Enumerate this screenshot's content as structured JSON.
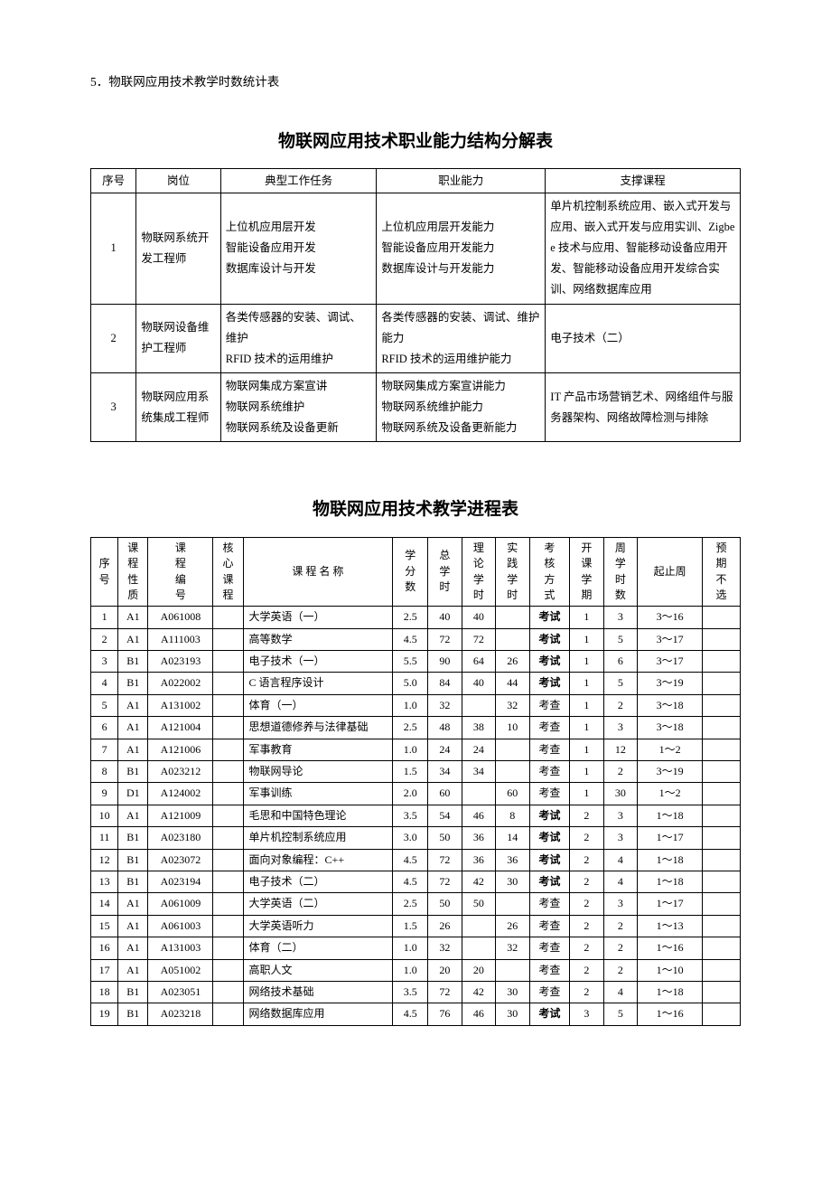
{
  "section_label": "5．物联网应用技术教学时数统计表",
  "title1": "物联网应用技术职业能力结构分解表",
  "table1": {
    "headers": [
      "序号",
      "岗位",
      "典型工作任务",
      "职业能力",
      "支撑课程"
    ],
    "col_widths": [
      "7%",
      "13%",
      "24%",
      "26%",
      "30%"
    ],
    "rows": [
      {
        "seq": "1",
        "pos": "物联网系统开发工程师",
        "task": "上位机应用层开发\n智能设备应用开发\n数据库设计与开发",
        "ability": "上位机应用层开发能力\n智能设备应用开发能力\n数据库设计与开发能力",
        "courses": "单片机控制系统应用、嵌入式开发与应用、嵌入式开发与应用实训、Zigbee 技术与应用、智能移动设备应用开发、智能移动设备应用开发综合实训、网络数据库应用"
      },
      {
        "seq": "2",
        "pos": "物联网设备维护工程师",
        "task": "各类传感器的安装、调试、维护\nRFID 技术的运用维护",
        "ability": "各类传感器的安装、调试、维护能力\nRFID 技术的运用维护能力",
        "courses": "电子技术（二）"
      },
      {
        "seq": "3",
        "pos": "物联网应用系统集成工程师",
        "task": "物联网集成方案宣讲\n物联网系统维护\n物联网系统及设备更新",
        "ability": "物联网集成方案宣讲能力\n物联网系统维护能力\n物联网系统及设备更新能力",
        "courses": "IT 产品市场营销艺术、网络组件与服务器架构、网络故障检测与排除"
      }
    ]
  },
  "title2": "物联网应用技术教学进程表",
  "table2": {
    "headers": [
      "序号",
      "课程性质",
      "课程编号",
      "核心课程",
      "课 程 名 称",
      "学分数",
      "总学时",
      "理论学时",
      "实践学时",
      "考核方式",
      "开课学期",
      "周学时数",
      "起止周",
      "预期不选"
    ],
    "col_widths": [
      "4.2%",
      "4.6%",
      "10%",
      "4.6%",
      "23%",
      "5.4%",
      "5.2%",
      "5.2%",
      "5.2%",
      "6.2%",
      "5.2%",
      "5.2%",
      "10%",
      "5.8%"
    ],
    "rows": [
      {
        "n": "1",
        "t": "A1",
        "code": "A061008",
        "core": "",
        "name": "大学英语（一）",
        "cr": "2.5",
        "tot": "40",
        "th": "40",
        "pr": "",
        "ex": "考试",
        "sem": "1",
        "wh": "3",
        "wk": "3～16",
        "opt": ""
      },
      {
        "n": "2",
        "t": "A1",
        "code": "A111003",
        "core": "",
        "name": "高等数学",
        "cr": "4.5",
        "tot": "72",
        "th": "72",
        "pr": "",
        "ex": "考试",
        "sem": "1",
        "wh": "5",
        "wk": "3～17",
        "opt": ""
      },
      {
        "n": "3",
        "t": "B1",
        "code": "A023193",
        "core": "",
        "name": "电子技术（一）",
        "cr": "5.5",
        "tot": "90",
        "th": "64",
        "pr": "26",
        "ex": "考试",
        "sem": "1",
        "wh": "6",
        "wk": "3～17",
        "opt": ""
      },
      {
        "n": "4",
        "t": "B1",
        "code": "A022002",
        "core": "",
        "name": "C 语言程序设计",
        "cr": "5.0",
        "tot": "84",
        "th": "40",
        "pr": "44",
        "ex": "考试",
        "sem": "1",
        "wh": "5",
        "wk": "3～19",
        "opt": ""
      },
      {
        "n": "5",
        "t": "A1",
        "code": "A131002",
        "core": "",
        "name": "体育（一）",
        "cr": "1.0",
        "tot": "32",
        "th": "",
        "pr": "32",
        "ex": "考查",
        "sem": "1",
        "wh": "2",
        "wk": "3～18",
        "opt": ""
      },
      {
        "n": "6",
        "t": "A1",
        "code": "A121004",
        "core": "",
        "name": "思想道德修养与法律基础",
        "cr": "2.5",
        "tot": "48",
        "th": "38",
        "pr": "10",
        "ex": "考查",
        "sem": "1",
        "wh": "3",
        "wk": "3～18",
        "opt": ""
      },
      {
        "n": "7",
        "t": "A1",
        "code": "A121006",
        "core": "",
        "name": "军事教育",
        "cr": "1.0",
        "tot": "24",
        "th": "24",
        "pr": "",
        "ex": "考查",
        "sem": "1",
        "wh": "12",
        "wk": "1～2",
        "opt": ""
      },
      {
        "n": "8",
        "t": "B1",
        "code": "A023212",
        "core": "",
        "name": "物联网导论",
        "cr": "1.5",
        "tot": "34",
        "th": "34",
        "pr": "",
        "ex": "考查",
        "sem": "1",
        "wh": "2",
        "wk": "3～19",
        "opt": ""
      },
      {
        "n": "9",
        "t": "D1",
        "code": "A124002",
        "core": "",
        "name": "军事训练",
        "cr": "2.0",
        "tot": "60",
        "th": "",
        "pr": "60",
        "ex": "考查",
        "sem": "1",
        "wh": "30",
        "wk": "1～2",
        "opt": ""
      },
      {
        "n": "10",
        "t": "A1",
        "code": "A121009",
        "core": "",
        "name": "毛思和中国特色理论",
        "cr": "3.5",
        "tot": "54",
        "th": "46",
        "pr": "8",
        "ex": "考试",
        "sem": "2",
        "wh": "3",
        "wk": "1～18",
        "opt": ""
      },
      {
        "n": "11",
        "t": "B1",
        "code": "A023180",
        "core": "",
        "name": "单片机控制系统应用",
        "cr": "3.0",
        "tot": "50",
        "th": "36",
        "pr": "14",
        "ex": "考试",
        "sem": "2",
        "wh": "3",
        "wk": "1～17",
        "opt": ""
      },
      {
        "n": "12",
        "t": "B1",
        "code": "A023072",
        "core": "",
        "name": "面向对象编程：C++",
        "cr": "4.5",
        "tot": "72",
        "th": "36",
        "pr": "36",
        "ex": "考试",
        "sem": "2",
        "wh": "4",
        "wk": "1～18",
        "opt": ""
      },
      {
        "n": "13",
        "t": "B1",
        "code": "A023194",
        "core": "",
        "name": "电子技术（二）",
        "cr": "4.5",
        "tot": "72",
        "th": "42",
        "pr": "30",
        "ex": "考试",
        "sem": "2",
        "wh": "4",
        "wk": "1～18",
        "opt": ""
      },
      {
        "n": "14",
        "t": "A1",
        "code": "A061009",
        "core": "",
        "name": "大学英语（二）",
        "cr": "2.5",
        "tot": "50",
        "th": "50",
        "pr": "",
        "ex": "考查",
        "sem": "2",
        "wh": "3",
        "wk": "1～17",
        "opt": ""
      },
      {
        "n": "15",
        "t": "A1",
        "code": "A061003",
        "core": "",
        "name": "大学英语听力",
        "cr": "1.5",
        "tot": "26",
        "th": "",
        "pr": "26",
        "ex": "考查",
        "sem": "2",
        "wh": "2",
        "wk": "1～13",
        "opt": ""
      },
      {
        "n": "16",
        "t": "A1",
        "code": "A131003",
        "core": "",
        "name": "体育（二）",
        "cr": "1.0",
        "tot": "32",
        "th": "",
        "pr": "32",
        "ex": "考查",
        "sem": "2",
        "wh": "2",
        "wk": "1～16",
        "opt": ""
      },
      {
        "n": "17",
        "t": "A1",
        "code": "A051002",
        "core": "",
        "name": "高职人文",
        "cr": "1.0",
        "tot": "20",
        "th": "20",
        "pr": "",
        "ex": "考查",
        "sem": "2",
        "wh": "2",
        "wk": "1～10",
        "opt": ""
      },
      {
        "n": "18",
        "t": "B1",
        "code": "A023051",
        "core": "",
        "name": "网络技术基础",
        "cr": "3.5",
        "tot": "72",
        "th": "42",
        "pr": "30",
        "ex": "考查",
        "sem": "2",
        "wh": "4",
        "wk": "1～18",
        "opt": ""
      },
      {
        "n": "19",
        "t": "B1",
        "code": "A023218",
        "core": "",
        "name": "网络数据库应用",
        "cr": "4.5",
        "tot": "76",
        "th": "46",
        "pr": "30",
        "ex": "考试",
        "sem": "3",
        "wh": "5",
        "wk": "1～16",
        "opt": ""
      }
    ]
  }
}
